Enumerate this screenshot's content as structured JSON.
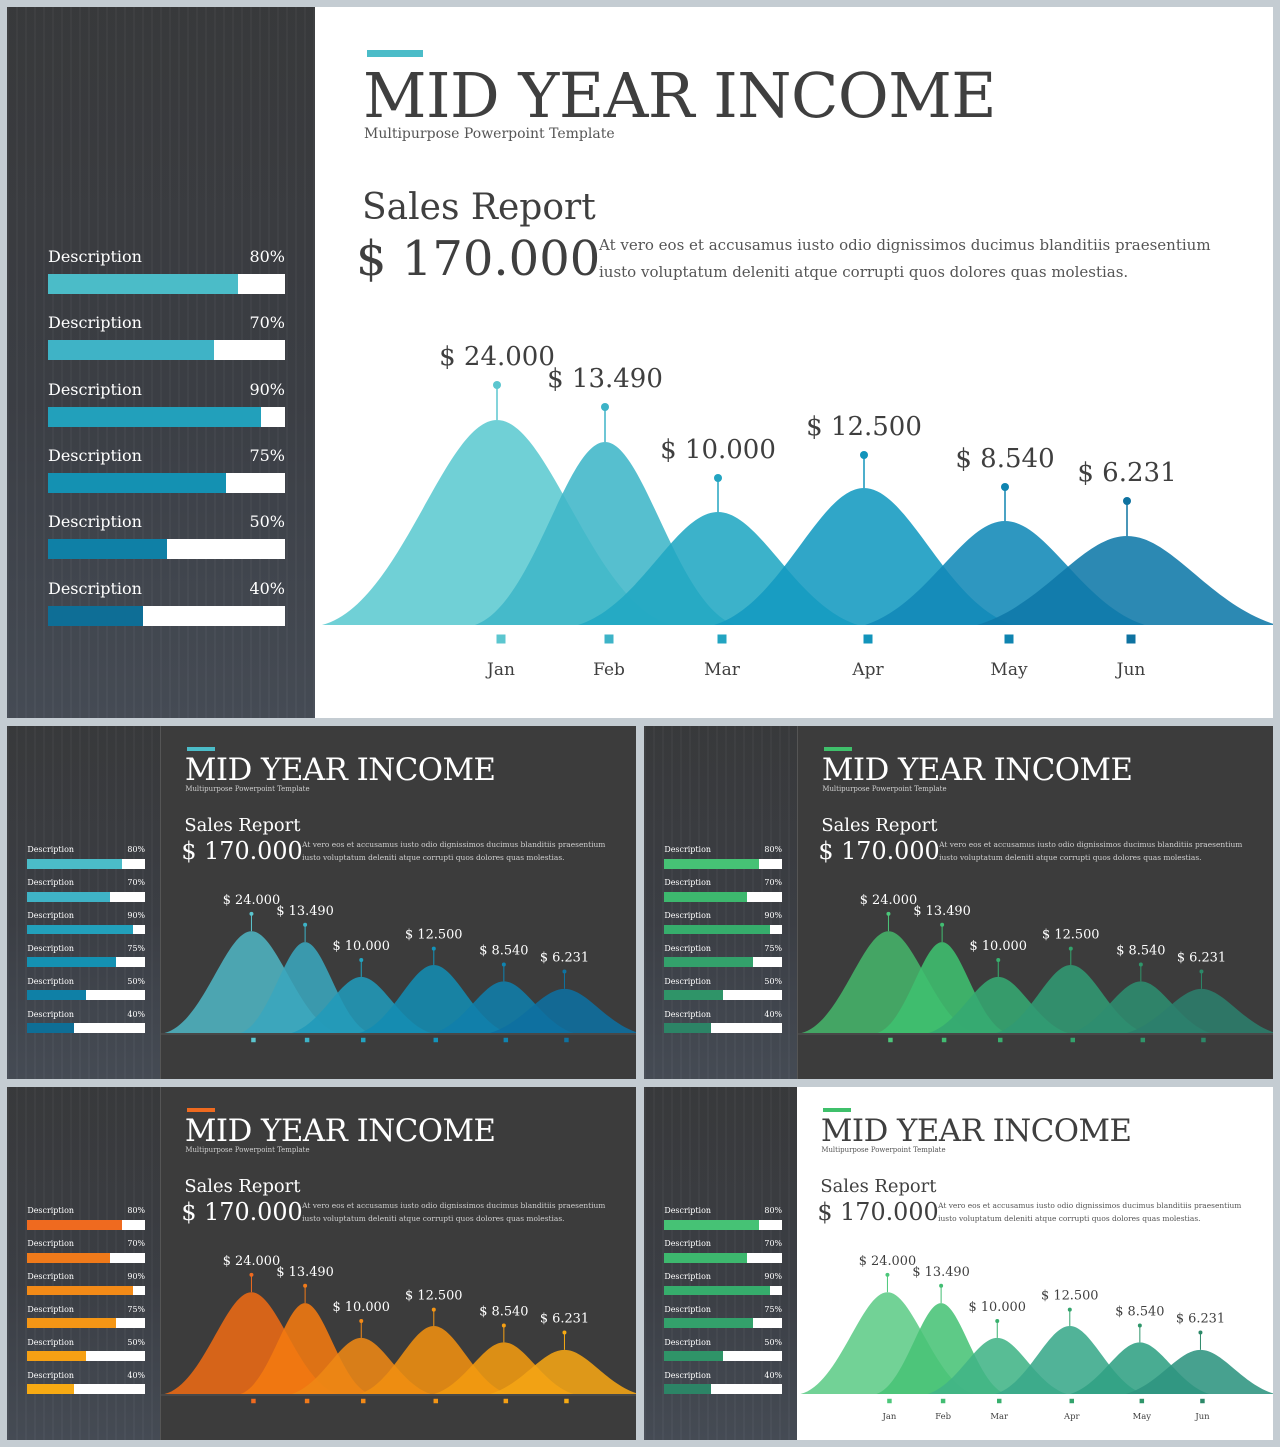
{
  "title": "MID YEAR INCOME",
  "subtitle": "Multipurpose  Powerpoint  Template",
  "report_title": "Sales Report",
  "report_total": "$ 170.000",
  "report_text_line1": "At vero eos et accusamus  iusto odio dignissimos  ducimus blanditiis  praesentium",
  "report_text_line2": "iusto voluptatum deleniti  atque corrupti quos dolores quas molestias.",
  "description_items": [
    {
      "label": "Description",
      "percent_text": "80%",
      "percent": 80
    },
    {
      "label": "Description",
      "percent_text": "70%",
      "percent": 70
    },
    {
      "label": "Description",
      "percent_text": "90%",
      "percent": 90
    },
    {
      "label": "Description",
      "percent_text": "75%",
      "percent": 75
    },
    {
      "label": "Description",
      "percent_text": "50%",
      "percent": 50
    },
    {
      "label": "Description",
      "percent_text": "40%",
      "percent": 40
    }
  ],
  "slides": [
    {
      "name": "teal-light",
      "theme": "light",
      "accent": "#4bbcc8",
      "bar_colors": [
        "#4bbcc8",
        "#3fb3c6",
        "#22a0bb",
        "#1491b2",
        "#0f80a6",
        "#0e6e96"
      ],
      "peak_colors": [
        "#5ccad0",
        "#3fb6c8",
        "#21a7c3",
        "#139ac0",
        "#1189b7",
        "#0f79a9"
      ],
      "marker_colors": [
        "#5bc6cf",
        "#3db3c7",
        "#22a4c1",
        "#1294bb",
        "#0f84b0",
        "#0e72a0"
      ],
      "month_labels": true
    },
    {
      "name": "teal-dark",
      "theme": "dark",
      "accent": "#4bbcc8",
      "bar_colors": [
        "#4bbcc8",
        "#3fb3c6",
        "#22a0bb",
        "#1491b2",
        "#0f80a6",
        "#0e6e96"
      ],
      "peak_colors": [
        "#4fb4c2",
        "#3aa6bd",
        "#219ab9",
        "#138cb2",
        "#107eab",
        "#0e70a0"
      ],
      "marker_colors": [
        "#5bc6cf",
        "#3db3c7",
        "#22a4c1",
        "#1294bb",
        "#0f84b0",
        "#0e72a0"
      ],
      "month_labels": false
    },
    {
      "name": "green-dark",
      "theme": "dark",
      "accent": "#3fc06b",
      "bar_colors": [
        "#46c275",
        "#3db86e",
        "#36ad6c",
        "#33a16b",
        "#2f9468",
        "#2c8466"
      ],
      "peak_colors": [
        "#46b46a",
        "#3fc06f",
        "#36a872",
        "#319a73",
        "#2e8d70",
        "#2c7e6c"
      ],
      "marker_colors": [
        "#4cc77a",
        "#42bd72",
        "#38b06e",
        "#33a36c",
        "#2f966a",
        "#2c8868"
      ],
      "month_labels": false
    },
    {
      "name": "orange-dark",
      "theme": "dark",
      "accent": "#ef6a1f",
      "bar_colors": [
        "#ef6a1f",
        "#f07a1a",
        "#f38a17",
        "#f59615",
        "#f6a014",
        "#f7aa13"
      ],
      "peak_colors": [
        "#ec6a14",
        "#f47a10",
        "#ee8714",
        "#f08f10",
        "#f39b10",
        "#f5a514"
      ],
      "marker_colors": [
        "#ef6a1f",
        "#f07a1a",
        "#f38a17",
        "#f59615",
        "#f6a014",
        "#f7aa13"
      ],
      "month_labels": false
    },
    {
      "name": "green-light",
      "theme": "light",
      "accent": "#3fc06b",
      "bar_colors": [
        "#46c275",
        "#3db86e",
        "#36ad6c",
        "#33a16b",
        "#2f9468",
        "#2c8466"
      ],
      "peak_colors": [
        "#5fcc87",
        "#48c376",
        "#41b486",
        "#39a98a",
        "#30a083",
        "#2d9480"
      ],
      "marker_colors": [
        "#4cc77a",
        "#42bd72",
        "#38b06e",
        "#33a36c",
        "#2f966a",
        "#2c8868"
      ],
      "month_labels": true
    }
  ],
  "chart_data": {
    "type": "area",
    "categories": [
      "Jan",
      "Feb",
      "Mar",
      "Apr",
      "May",
      "Jun"
    ],
    "values": [
      24000,
      13490,
      10000,
      12500,
      8540,
      6231
    ],
    "value_labels": [
      "$ 24.000",
      "$ 13.490",
      "$ 10.000",
      "$ 12.500",
      "$ 8.540",
      "$ 6.231"
    ]
  }
}
